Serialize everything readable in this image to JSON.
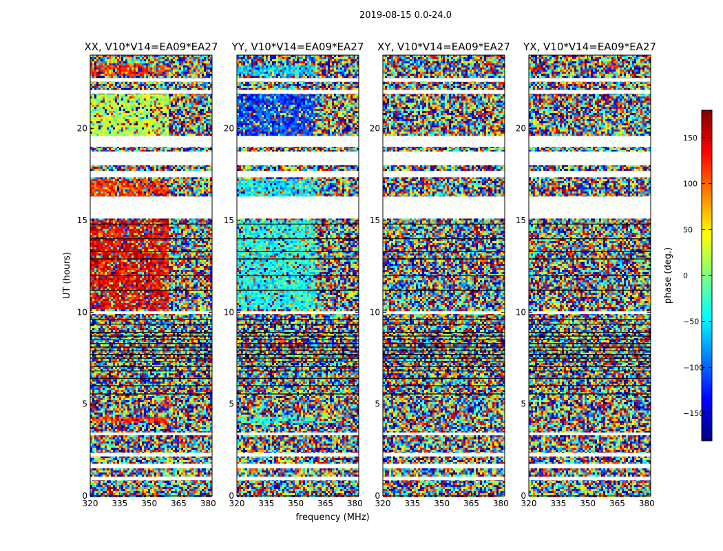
{
  "figure": {
    "suptitle": "2019-08-15 0.0-24.0",
    "xlabel": "frequency (MHz)",
    "ylabel": "UT (hours)"
  },
  "chart_data": [
    {
      "type": "heatmap",
      "title": "XX, V10*V14=EA09*EA27",
      "x_ticks": [
        320,
        335,
        350,
        365,
        380
      ],
      "y_ticks": [
        0,
        5,
        10,
        15,
        20
      ],
      "xlim": [
        320,
        382
      ],
      "ylim": [
        0,
        24
      ],
      "mean_phase_by_block": [
        {
          "t0": 10.2,
          "t1": 15.1,
          "phase": 140,
          "f_cut": 359
        },
        {
          "t0": 16.3,
          "t1": 17.3,
          "phase": 115,
          "f_cut": 359
        },
        {
          "t0": 19.6,
          "t1": 21.9,
          "phase": 20,
          "f_cut": 359
        },
        {
          "t0": 22.9,
          "t1": 23.5,
          "phase": 120,
          "f_cut": 359
        },
        {
          "t0": 4.0,
          "t1": 4.35,
          "phase": 120,
          "f_cut": 359
        }
      ]
    },
    {
      "type": "heatmap",
      "title": "YY, V10*V14=EA09*EA27",
      "x_ticks": [
        320,
        335,
        350,
        365,
        380
      ],
      "y_ticks": [
        0,
        5,
        10,
        15,
        20
      ],
      "xlim": [
        320,
        382
      ],
      "ylim": [
        0,
        24
      ],
      "mean_phase_by_block": [
        {
          "t0": 10.2,
          "t1": 15.1,
          "phase": -40,
          "f_cut": 359
        },
        {
          "t0": 16.3,
          "t1": 17.3,
          "phase": -50,
          "f_cut": 359
        },
        {
          "t0": 19.6,
          "t1": 21.9,
          "phase": -110,
          "f_cut": 359
        },
        {
          "t0": 22.9,
          "t1": 23.5,
          "phase": -60,
          "f_cut": 359
        },
        {
          "t0": 4.0,
          "t1": 4.35,
          "phase": -40,
          "f_cut": 359
        }
      ]
    },
    {
      "type": "heatmap",
      "title": "XY, V10*V14=EA09*EA27",
      "x_ticks": [
        320,
        335,
        350,
        365,
        380
      ],
      "y_ticks": [
        0,
        5,
        10,
        15,
        20
      ],
      "xlim": [
        320,
        382
      ],
      "ylim": [
        0,
        24
      ],
      "mean_phase_by_block": []
    },
    {
      "type": "heatmap",
      "title": "YX, V10*V14=EA09*EA27",
      "x_ticks": [
        320,
        335,
        350,
        365,
        380
      ],
      "y_ticks": [
        0,
        5,
        10,
        15,
        20
      ],
      "xlim": [
        320,
        382
      ],
      "ylim": [
        0,
        24
      ],
      "mean_phase_by_block": []
    }
  ],
  "colorbar": {
    "label": "phase (deg.)",
    "range": [
      -180,
      180
    ],
    "ticks": [
      150,
      100,
      50,
      0,
      -50,
      -100,
      -150
    ],
    "tick_labels": [
      "150",
      "100",
      "50",
      "0",
      "−50",
      "−100",
      "−150"
    ],
    "colormap": "jet"
  },
  "gaps_hours": [
    [
      0.85,
      1.05
    ],
    [
      1.5,
      1.75
    ],
    [
      2.15,
      2.35
    ],
    [
      3.3,
      3.45
    ],
    [
      9.9,
      10.05
    ],
    [
      15.1,
      16.3
    ],
    [
      17.35,
      17.7
    ],
    [
      18.0,
      18.75
    ],
    [
      19.0,
      19.6
    ],
    [
      21.9,
      22.1
    ],
    [
      22.55,
      22.75
    ]
  ],
  "line_hours": [
    5.55,
    6.0,
    6.4,
    6.8,
    7.05,
    7.3,
    7.5,
    7.7,
    7.9,
    8.1,
    8.3,
    8.5,
    8.7,
    8.9,
    9.35,
    9.6,
    11.2,
    12.0,
    12.9,
    13.3,
    14.0,
    14.8
  ]
}
